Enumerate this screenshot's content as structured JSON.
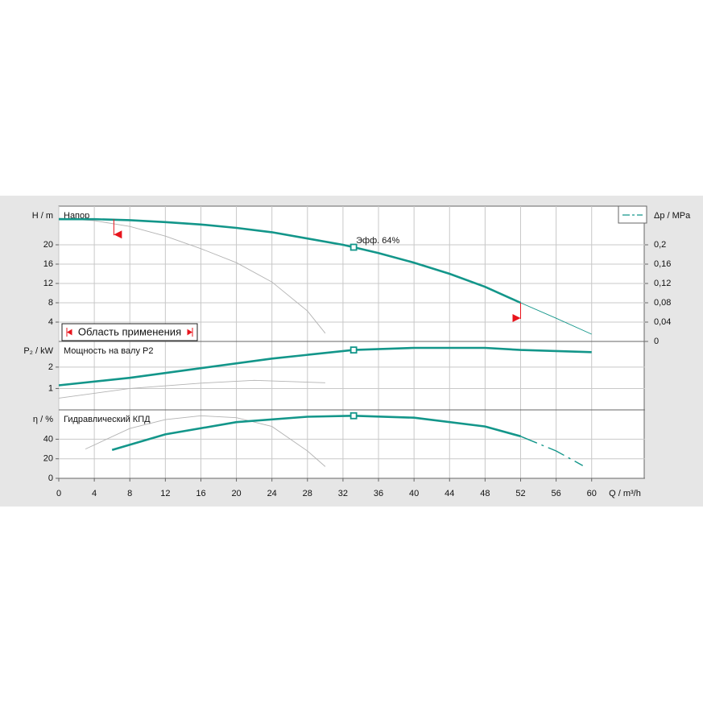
{
  "chart_data": {
    "type": "line",
    "x_label": "Q / m³/h",
    "xlim": [
      0,
      66
    ],
    "xticks": [
      0,
      4,
      8,
      12,
      16,
      20,
      24,
      28,
      32,
      36,
      40,
      44,
      48,
      52,
      56,
      60
    ],
    "grid": true,
    "panels": [
      {
        "title": "Напор",
        "y_label": "H / m",
        "ylim": [
          0,
          28
        ],
        "yticks": [
          4,
          8,
          12,
          16,
          20
        ],
        "y2_label": "Δp / MPa",
        "y2lim": [
          0,
          0.28
        ],
        "y2ticks": [
          0,
          {
            "value": 0.04,
            "label": "0,04"
          },
          {
            "value": 0.08,
            "label": "0,08"
          },
          {
            "value": 0.12,
            "label": "0,12"
          },
          {
            "value": 0.16,
            "label": "0,16"
          },
          {
            "value": 0.2,
            "label": "0,2"
          }
        ],
        "series": [
          {
            "color": "#b3b3b3",
            "style": "thin",
            "x": [
              0,
              4,
              8,
              12,
              16,
              20,
              24,
              28,
              30
            ],
            "values": [
              25.5,
              25,
              23.8,
              21.8,
              19.2,
              16.3,
              12.3,
              6.3,
              1.7
            ]
          },
          {
            "color": "#13968a",
            "style": "thick",
            "x": [
              0,
              4,
              8,
              12,
              16,
              20,
              24,
              28,
              32,
              33.2,
              36,
              40,
              44,
              48,
              52
            ],
            "values": [
              25.3,
              25.3,
              25.1,
              24.7,
              24.2,
              23.5,
              22.6,
              21.3,
              20,
              19.5,
              18.3,
              16.3,
              14,
              11.3,
              8
            ]
          },
          {
            "color": "#13968a",
            "style": "thin",
            "x": [
              52,
              56,
              60
            ],
            "values": [
              8,
              4.8,
              1.5
            ]
          }
        ]
      },
      {
        "title": "Мощность на валу P2",
        "y_label": "P₂ / kW",
        "ylim": [
          0,
          3.2
        ],
        "yticks": [
          1,
          2
        ],
        "series": [
          {
            "color": "#b3b3b3",
            "style": "thin",
            "x": [
              0,
              8,
              16,
              22,
              30
            ],
            "values": [
              0.55,
              1,
              1.25,
              1.38,
              1.27
            ]
          },
          {
            "color": "#13968a",
            "style": "thick",
            "x": [
              0,
              8,
              16,
              24,
              33.2,
              40,
              48,
              52,
              60
            ],
            "values": [
              1.15,
              1.5,
              1.95,
              2.4,
              2.8,
              2.9,
              2.9,
              2.8,
              2.7
            ]
          }
        ]
      },
      {
        "title": "Гидравлический КПД",
        "y_label": "η / %",
        "ylim": [
          0,
          70
        ],
        "yticks": [
          0,
          20,
          40
        ],
        "series": [
          {
            "color": "#b3b3b3",
            "style": "thin",
            "x": [
              3,
              8,
              12,
              16,
              20,
              24,
              28,
              30
            ],
            "values": [
              30,
              51,
              60,
              64,
              62,
              53,
              28,
              12
            ]
          },
          {
            "color": "#13968a",
            "style": "thick",
            "x": [
              6,
              12,
              20,
              28,
              33.2,
              40,
              48,
              52
            ],
            "values": [
              29,
              45,
              57.5,
              63,
              64,
              62,
              53,
              43
            ]
          },
          {
            "color": "#13968a",
            "style": "dashed",
            "x": [
              52,
              56,
              59
            ],
            "values": [
              43,
              28,
              13
            ]
          }
        ]
      }
    ],
    "duty_point": {
      "x": 33.2,
      "label": "Эфф.  64%",
      "y": [
        19.5,
        2.8,
        64
      ]
    },
    "application_range": {
      "label": "Область применения",
      "x": [
        6.2,
        52
      ],
      "y": [
        25.3,
        8
      ]
    }
  }
}
